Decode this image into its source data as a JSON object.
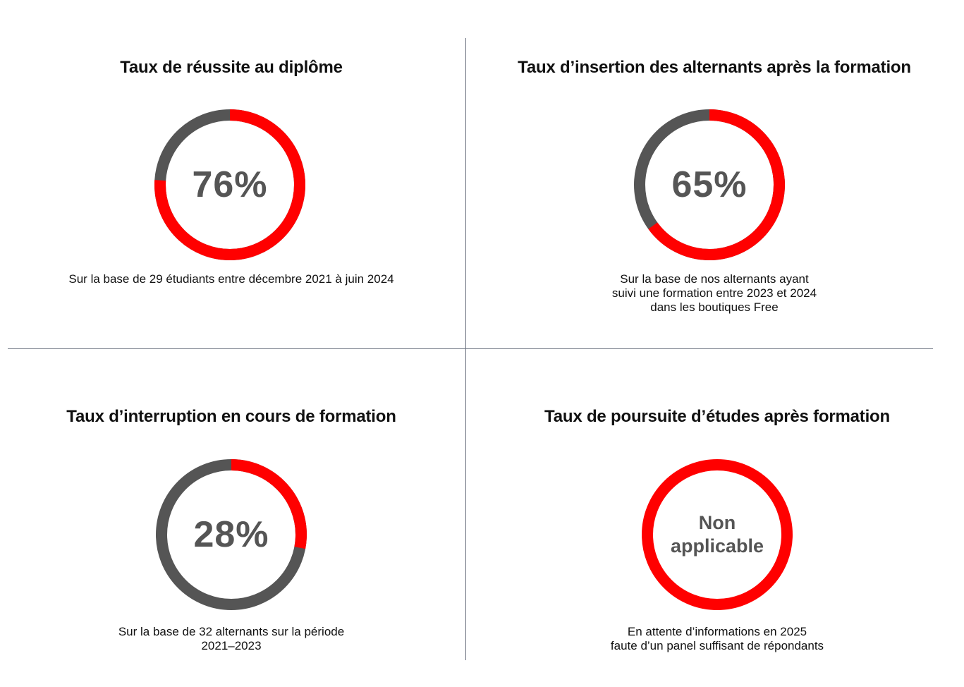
{
  "colors": {
    "accent": "#ff0000",
    "remainder": "#555555",
    "divider": "#6b7280"
  },
  "chart_data": [
    {
      "type": "pie",
      "title": "Taux de réussite au diplôme",
      "center_label": "76%",
      "value": 76,
      "remainder": 24,
      "caption": [
        "Sur la base de 29 étudiants entre décembre 2021 à juin 2024"
      ]
    },
    {
      "type": "pie",
      "title": "Taux d’insertion des alternants après la formation",
      "center_label": "65%",
      "value": 65,
      "remainder": 35,
      "caption": [
        "Sur la base de nos alternants ayant",
        "suivi une formation entre 2023 et 2024",
        "dans les boutiques Free"
      ]
    },
    {
      "type": "pie",
      "title": "Taux d’interruption en cours de formation",
      "center_label": "28%",
      "value": 28,
      "remainder": 72,
      "caption": [
        "Sur la base de 32 alternants sur la période",
        "2021–2023"
      ]
    },
    {
      "type": "pie",
      "title": "Taux de poursuite d’études après formation",
      "center_label": "Non applicable",
      "value": null,
      "remainder": null,
      "caption": [
        "En attente d’informations en 2025",
        "faute d’un panel suffisant de répondants"
      ]
    }
  ]
}
